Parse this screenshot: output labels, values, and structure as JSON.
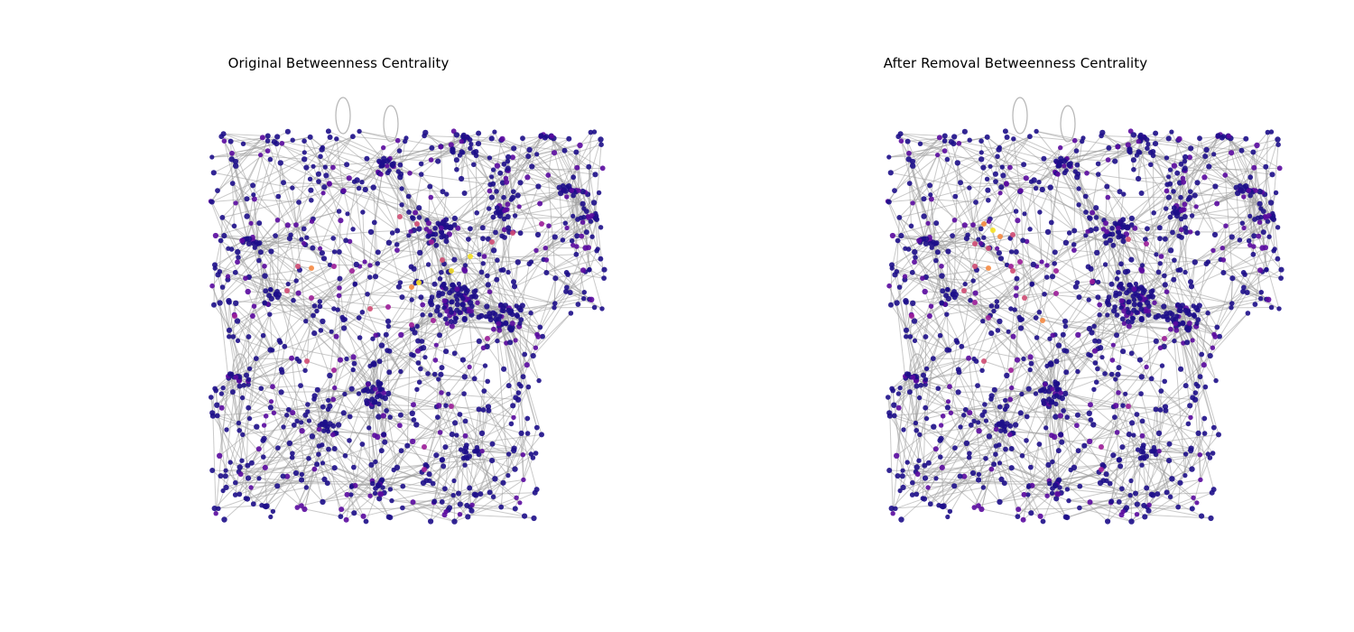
{
  "figure": {
    "panels": [
      {
        "title": "Original Betweenness Centrality"
      },
      {
        "title": "After Removal Betweenness Centrality"
      }
    ]
  },
  "colors": {
    "edge": "#9e9e9e",
    "self_loop": "#b5b5b5",
    "node_low": "#1d0e8a",
    "node_mid_low": "#5a0aa0",
    "node_mid": "#9b1c98",
    "node_mid_high": "#cf4b73",
    "node_high": "#f58a42",
    "node_peak": "#f7e225"
  },
  "colormap": "plasma"
}
